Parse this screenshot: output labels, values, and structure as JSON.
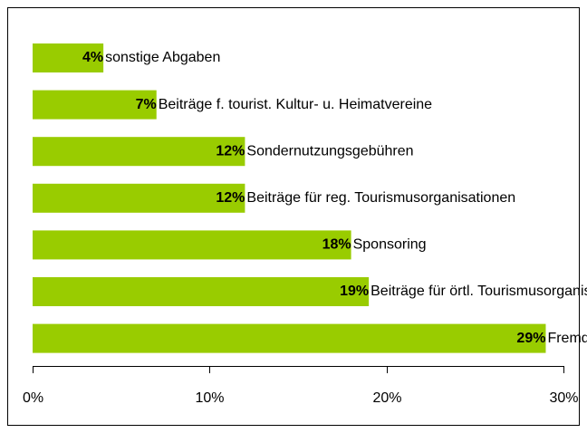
{
  "chart_data": {
    "type": "barh",
    "categories": [
      "sonstige Abgaben",
      "Beiträge f. tourist. Kultur- u. Heimatvereine",
      "Sondernutzungsgebühren",
      "Beiträge für reg. Tourismusorganisationen",
      "Sponsoring",
      "Beiträge für örtl. Tourismusorganisat.",
      "Fremdenverkehrsabgabe"
    ],
    "values": [
      4,
      7,
      12,
      12,
      18,
      19,
      29
    ],
    "value_labels": [
      "4%",
      "7%",
      "12%",
      "12%",
      "18%",
      "19%",
      "29%"
    ],
    "color": "#99cc00",
    "xlim": [
      0,
      30
    ],
    "xticks": [
      {
        "value": 0,
        "label": "0%"
      },
      {
        "value": 10,
        "label": "10%"
      },
      {
        "value": 20,
        "label": "20%"
      },
      {
        "value": 30,
        "label": "30%"
      }
    ]
  }
}
